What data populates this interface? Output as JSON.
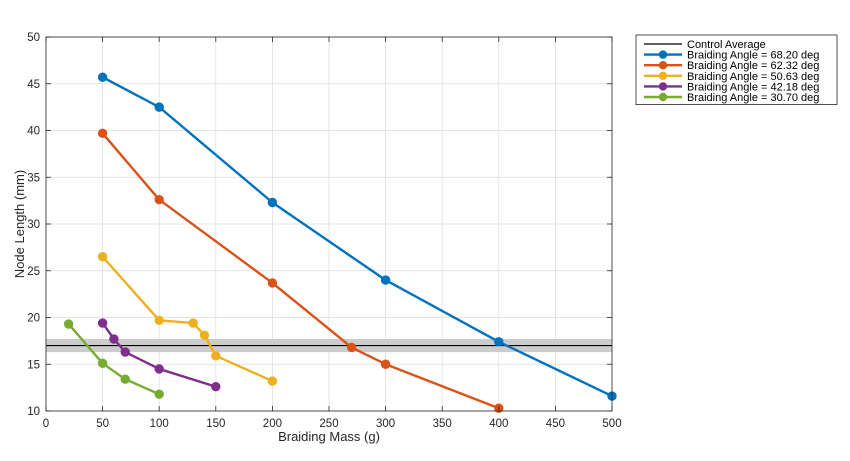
{
  "chart_data": {
    "type": "line",
    "xlabel": "Braiding Mass (g)",
    "ylabel": "Node Length (mm)",
    "xlim": [
      0,
      500
    ],
    "ylim": [
      10,
      50
    ],
    "xticks": [
      0,
      50,
      100,
      150,
      200,
      250,
      300,
      350,
      400,
      450,
      500
    ],
    "yticks": [
      10,
      15,
      20,
      25,
      30,
      35,
      40,
      45,
      50
    ],
    "grid": true,
    "legend_position": "outside-top-right",
    "control": {
      "name": "Control Average",
      "mean": 17.0,
      "band": [
        16.3,
        17.7
      ],
      "color": "#000000",
      "band_color": "#cccccc"
    },
    "series": [
      {
        "name": "Braiding Angle = 68.20 deg",
        "color": "#0072BD",
        "x": [
          50,
          100,
          200,
          300,
          400,
          500
        ],
        "y": [
          45.7,
          42.5,
          32.3,
          24.0,
          17.4,
          11.6
        ]
      },
      {
        "name": "Braiding Angle = 62.32 deg",
        "color": "#D95319",
        "x": [
          50,
          100,
          200,
          270,
          300,
          400
        ],
        "y": [
          39.7,
          32.6,
          23.7,
          16.8,
          15.0,
          10.3
        ]
      },
      {
        "name": "Braiding Angle = 50.63 deg",
        "color": "#EDB120",
        "x": [
          50,
          100,
          130,
          140,
          150,
          200
        ],
        "y": [
          26.5,
          19.7,
          19.4,
          18.1,
          15.9,
          13.2
        ]
      },
      {
        "name": "Braiding Angle = 42.18 deg",
        "color": "#7E2F8E",
        "x": [
          50,
          60,
          70,
          100,
          150
        ],
        "y": [
          19.4,
          17.7,
          16.3,
          14.5,
          12.6
        ]
      },
      {
        "name": "Braiding Angle = 30.70 deg",
        "color": "#77AC30",
        "x": [
          20,
          50,
          70,
          100
        ],
        "y": [
          19.3,
          15.1,
          13.4,
          11.8
        ]
      }
    ]
  }
}
